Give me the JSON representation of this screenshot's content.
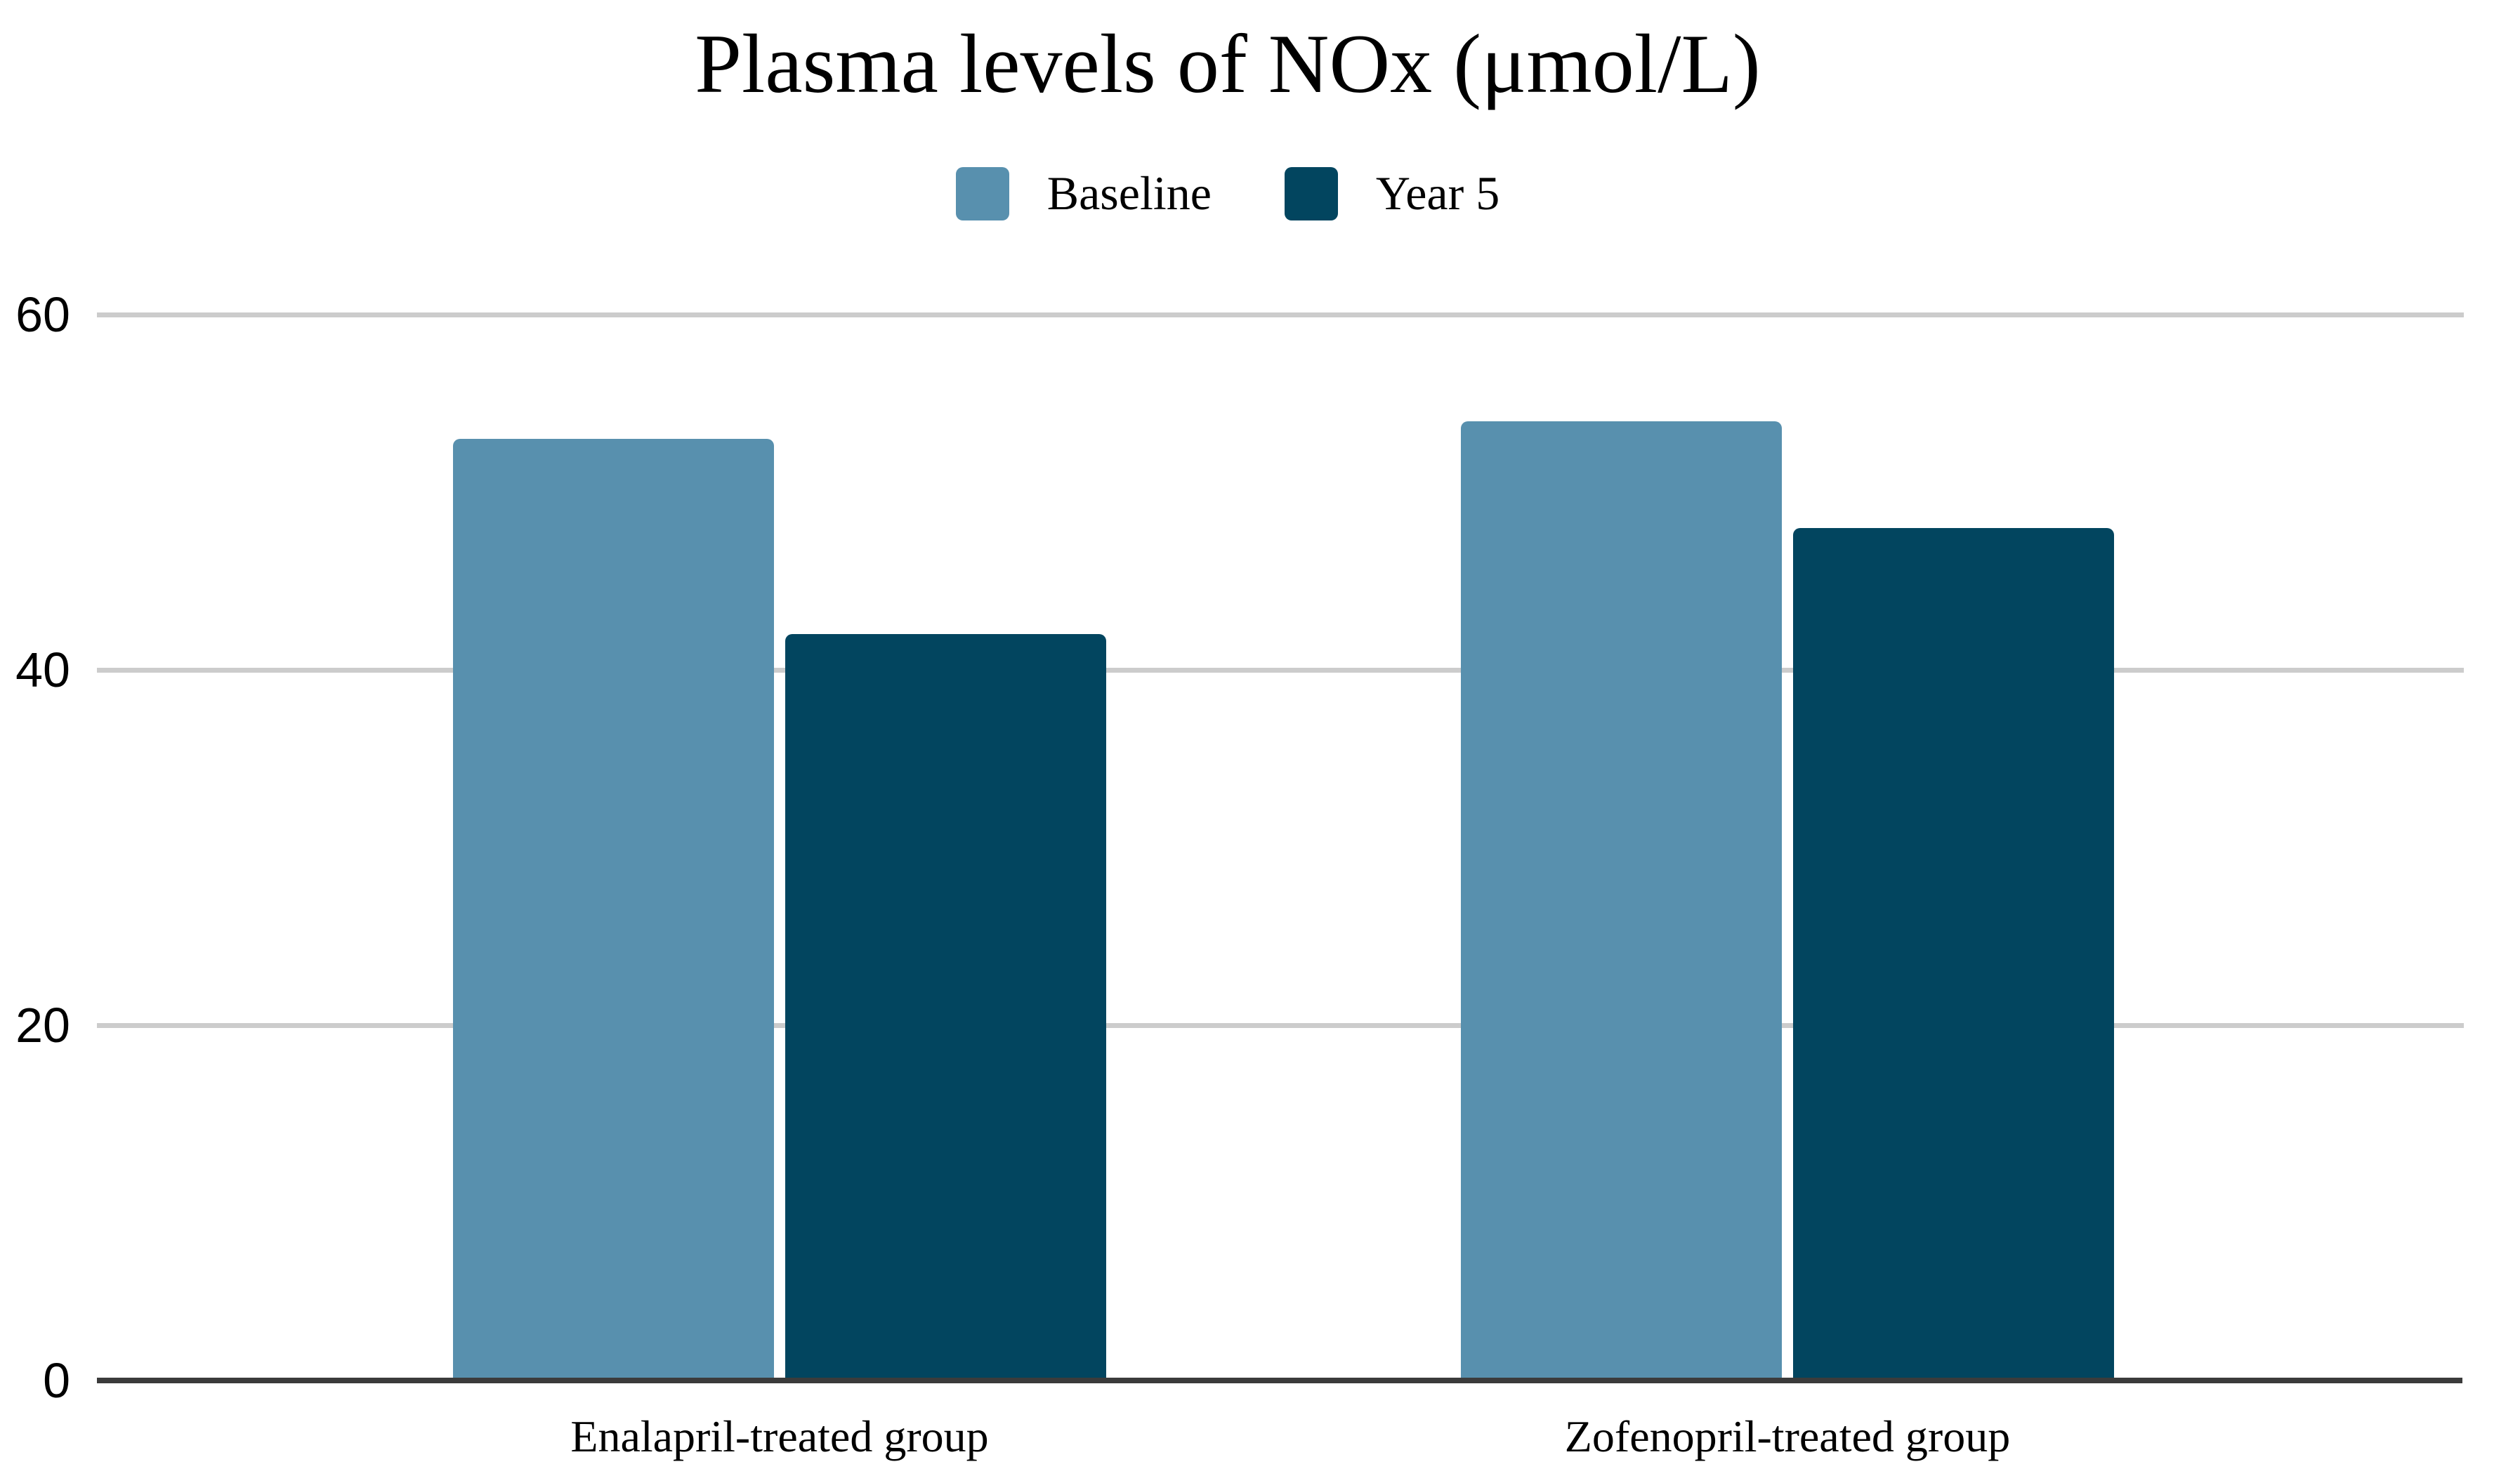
{
  "chart_data": {
    "type": "bar",
    "title": "Plasma levels of NOx (μmol/L)",
    "categories": [
      "Enalapril-treated group",
      "Zofenopril-treated group"
    ],
    "series": [
      {
        "name": "Baseline",
        "color": "#5890ae",
        "values": [
          53,
          54
        ]
      },
      {
        "name": "Year 5",
        "color": "#02455f",
        "values": [
          42,
          48
        ]
      }
    ],
    "xlabel": "",
    "ylabel": "",
    "ylim": [
      0,
      60
    ],
    "y_ticks": [
      0,
      20,
      40,
      60
    ],
    "grid": "horizontal",
    "legend_position": "top",
    "colors": {
      "gridline": "#cccccc",
      "axis": "#3b3b3b",
      "text": "#000000",
      "background": "#ffffff"
    }
  }
}
